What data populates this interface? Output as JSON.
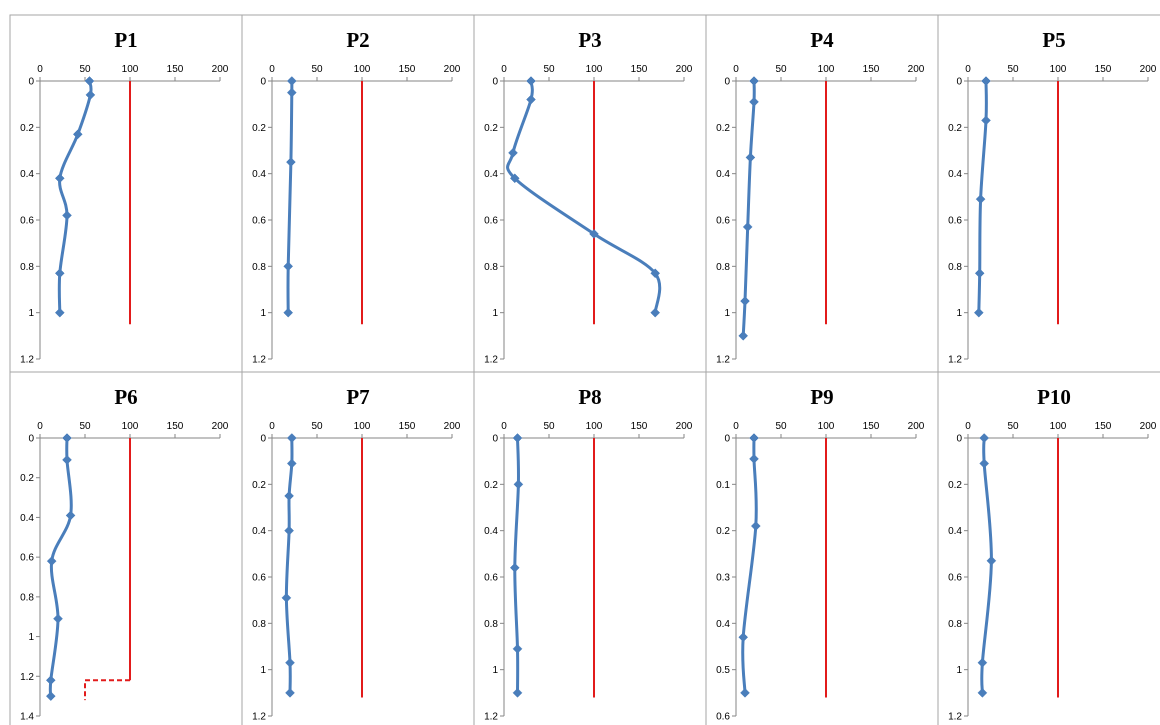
{
  "chart_data": [
    {
      "type": "line",
      "title": "P1",
      "xlim": [
        0,
        200
      ],
      "xticks": [
        0,
        50,
        100,
        150,
        200
      ],
      "ylim": [
        0,
        1.2
      ],
      "yticks": [
        "0",
        "0.2",
        "0.4",
        "0.6",
        "0.8",
        "1",
        "1.2"
      ],
      "y_reversed": true,
      "threshold": {
        "value": 100,
        "color": "#e21b1b",
        "y_range": [
          0,
          1.05
        ]
      },
      "series": [
        {
          "color": "#4a7ebb",
          "points": [
            [
              55,
              0
            ],
            [
              56,
              0.06
            ],
            [
              42,
              0.23
            ],
            [
              22,
              0.42
            ],
            [
              30,
              0.58
            ],
            [
              22,
              0.83
            ],
            [
              22,
              1.0
            ]
          ]
        }
      ]
    },
    {
      "type": "line",
      "title": "P2",
      "xlim": [
        0,
        200
      ],
      "xticks": [
        0,
        50,
        100,
        150,
        200
      ],
      "ylim": [
        0,
        1.2
      ],
      "yticks": [
        "0",
        "0.2",
        "0.4",
        "0.6",
        "0.8",
        "1",
        "1.2"
      ],
      "y_reversed": true,
      "threshold": {
        "value": 100,
        "color": "#e21b1b",
        "y_range": [
          0,
          1.05
        ]
      },
      "series": [
        {
          "color": "#4a7ebb",
          "points": [
            [
              22,
              0
            ],
            [
              22,
              0.05
            ],
            [
              21,
              0.35
            ],
            [
              18,
              0.8
            ],
            [
              18,
              1.0
            ]
          ]
        }
      ]
    },
    {
      "type": "line",
      "title": "P3",
      "xlim": [
        0,
        200
      ],
      "xticks": [
        0,
        50,
        100,
        150,
        200
      ],
      "ylim": [
        0,
        1.2
      ],
      "yticks": [
        "0",
        "0.2",
        "0.4",
        "0.6",
        "0.8",
        "1",
        "1.2"
      ],
      "y_reversed": true,
      "threshold": {
        "value": 100,
        "color": "#e21b1b",
        "y_range": [
          0,
          1.05
        ]
      },
      "series": [
        {
          "color": "#4a7ebb",
          "points": [
            [
              30,
              0
            ],
            [
              30,
              0.08
            ],
            [
              10,
              0.31
            ],
            [
              12,
              0.42
            ],
            [
              100,
              0.66
            ],
            [
              168,
              0.83
            ],
            [
              168,
              1.0
            ]
          ]
        }
      ]
    },
    {
      "type": "line",
      "title": "P4",
      "xlim": [
        0,
        200
      ],
      "xticks": [
        0,
        50,
        100,
        150,
        200
      ],
      "ylim": [
        0,
        1.2
      ],
      "yticks": [
        "0",
        "0.2",
        "0.4",
        "0.6",
        "0.8",
        "1",
        "1.2"
      ],
      "y_reversed": true,
      "threshold": {
        "value": 100,
        "color": "#e21b1b",
        "y_range": [
          0,
          1.05
        ]
      },
      "series": [
        {
          "color": "#4a7ebb",
          "points": [
            [
              20,
              0
            ],
            [
              20,
              0.09
            ],
            [
              16,
              0.33
            ],
            [
              13,
              0.63
            ],
            [
              10,
              0.95
            ],
            [
              8,
              1.1
            ]
          ]
        }
      ]
    },
    {
      "type": "line",
      "title": "P5",
      "xlim": [
        0,
        200
      ],
      "xticks": [
        0,
        50,
        100,
        150,
        200
      ],
      "ylim": [
        0,
        1.2
      ],
      "yticks": [
        "0",
        "0.2",
        "0.4",
        "0.6",
        "0.8",
        "1",
        "1.2"
      ],
      "y_reversed": true,
      "threshold": {
        "value": 100,
        "color": "#e21b1b",
        "y_range": [
          0,
          1.05
        ]
      },
      "series": [
        {
          "color": "#4a7ebb",
          "points": [
            [
              20,
              0
            ],
            [
              20,
              0.17
            ],
            [
              14,
              0.51
            ],
            [
              13,
              0.83
            ],
            [
              12,
              1.0
            ]
          ]
        }
      ]
    },
    {
      "type": "line",
      "title": "P6",
      "xlim": [
        0,
        200
      ],
      "xticks": [
        0,
        50,
        100,
        150,
        200
      ],
      "ylim": [
        0,
        1.4
      ],
      "yticks": [
        "0",
        "0.2",
        "0.4",
        "0.6",
        "0.8",
        "1",
        "1.2",
        "1.4"
      ],
      "y_reversed": true,
      "threshold": {
        "value": 100,
        "color": "#e21b1b",
        "y_range": [
          0,
          1.22
        ],
        "dashed_step": {
          "x_to": 50,
          "y": 1.22,
          "y_to": 1.32
        }
      },
      "series": [
        {
          "color": "#4a7ebb",
          "points": [
            [
              30,
              0
            ],
            [
              30,
              0.11
            ],
            [
              34,
              0.39
            ],
            [
              13,
              0.62
            ],
            [
              20,
              0.91
            ],
            [
              12,
              1.22
            ],
            [
              12,
              1.3
            ]
          ]
        }
      ]
    },
    {
      "type": "line",
      "title": "P7",
      "xlim": [
        0,
        200
      ],
      "xticks": [
        0,
        50,
        100,
        150,
        200
      ],
      "ylim": [
        0,
        1.2
      ],
      "yticks": [
        "0",
        "0.2",
        "0.4",
        "0.6",
        "0.8",
        "1",
        "1.2"
      ],
      "y_reversed": true,
      "threshold": {
        "value": 100,
        "color": "#e21b1b",
        "y_range": [
          0,
          1.12
        ]
      },
      "series": [
        {
          "color": "#4a7ebb",
          "points": [
            [
              22,
              0
            ],
            [
              22,
              0.11
            ],
            [
              19,
              0.25
            ],
            [
              19,
              0.4
            ],
            [
              16,
              0.69
            ],
            [
              20,
              0.97
            ],
            [
              20,
              1.1
            ]
          ]
        }
      ]
    },
    {
      "type": "line",
      "title": "P8",
      "xlim": [
        0,
        200
      ],
      "xticks": [
        0,
        50,
        100,
        150,
        200
      ],
      "ylim": [
        0,
        1.2
      ],
      "yticks": [
        "0",
        "0.2",
        "0.4",
        "0.6",
        "0.8",
        "1",
        "1.2"
      ],
      "y_reversed": true,
      "threshold": {
        "value": 100,
        "color": "#e21b1b",
        "y_range": [
          0,
          1.12
        ]
      },
      "series": [
        {
          "color": "#4a7ebb",
          "points": [
            [
              15,
              0
            ],
            [
              16,
              0.2
            ],
            [
              12,
              0.56
            ],
            [
              15,
              0.91
            ],
            [
              15,
              1.1
            ]
          ]
        }
      ]
    },
    {
      "type": "line",
      "title": "P9",
      "xlim": [
        0,
        200
      ],
      "xticks": [
        0,
        50,
        100,
        150,
        200
      ],
      "ylim": [
        0,
        0.6
      ],
      "yticks": [
        "0",
        "0.1",
        "0.2",
        "0.3",
        "0.4",
        "0.5",
        "0.6"
      ],
      "y_reversed": true,
      "threshold": {
        "value": 100,
        "color": "#e21b1b",
        "y_range": [
          0,
          0.56
        ]
      },
      "series": [
        {
          "color": "#4a7ebb",
          "points": [
            [
              20,
              0
            ],
            [
              20,
              0.045
            ],
            [
              22,
              0.19
            ],
            [
              8,
              0.43
            ],
            [
              10,
              0.55
            ]
          ]
        }
      ]
    },
    {
      "type": "line",
      "title": "P10",
      "xlim": [
        0,
        200
      ],
      "xticks": [
        0,
        50,
        100,
        150,
        200
      ],
      "ylim": [
        0,
        1.2
      ],
      "yticks": [
        "0",
        "0.2",
        "0.4",
        "0.6",
        "0.8",
        "1",
        "1.2"
      ],
      "y_reversed": true,
      "threshold": {
        "value": 100,
        "color": "#e21b1b",
        "y_range": [
          0,
          1.12
        ]
      },
      "series": [
        {
          "color": "#4a7ebb",
          "points": [
            [
              18,
              0
            ],
            [
              18,
              0.11
            ],
            [
              26,
              0.53
            ],
            [
              16,
              0.97
            ],
            [
              16,
              1.1
            ]
          ]
        }
      ]
    }
  ]
}
